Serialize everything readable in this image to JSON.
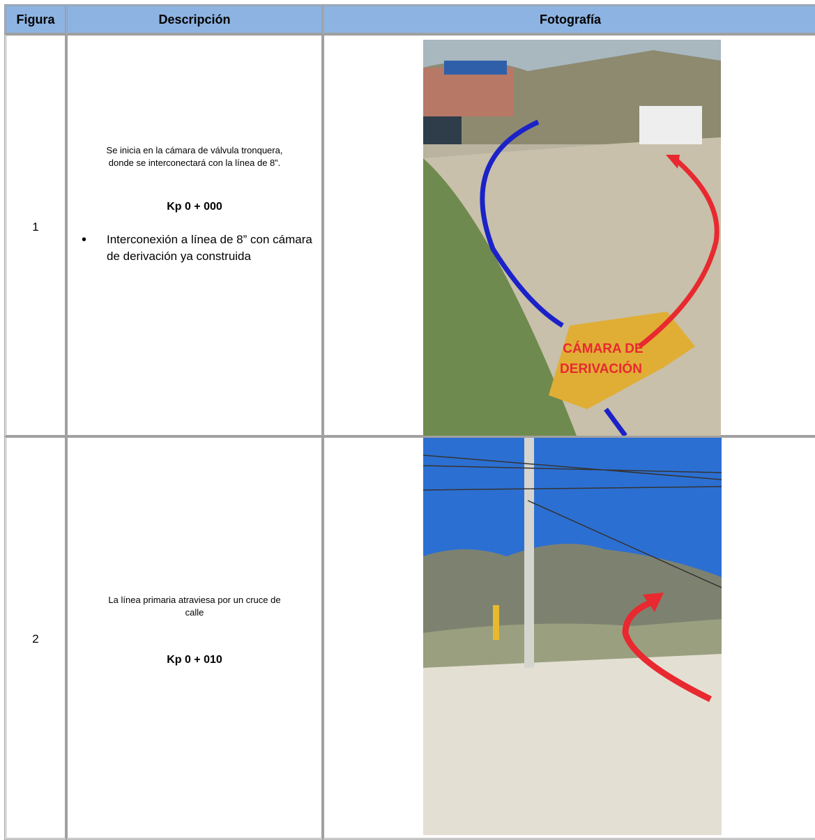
{
  "table": {
    "headers": [
      "Figura",
      "Descripción",
      "Fotografía"
    ],
    "rows": [
      {
        "figure": "1",
        "description": [
          "Se inicia en la cámara de válvula tronquera,",
          "donde se interconectará con la línea de 8”."
        ],
        "kp": "Kp 0 + 000",
        "bullets": [
          "Interconexión a línea de 8” con cámara de derivación ya construida"
        ],
        "photo_label": [
          "CÁMARA DE",
          "DERIVACIÓN"
        ]
      },
      {
        "figure": "2",
        "description": [
          "La línea primaria atraviesa por un cruce de",
          "calle"
        ],
        "kp": "Kp 0 + 010"
      }
    ]
  }
}
